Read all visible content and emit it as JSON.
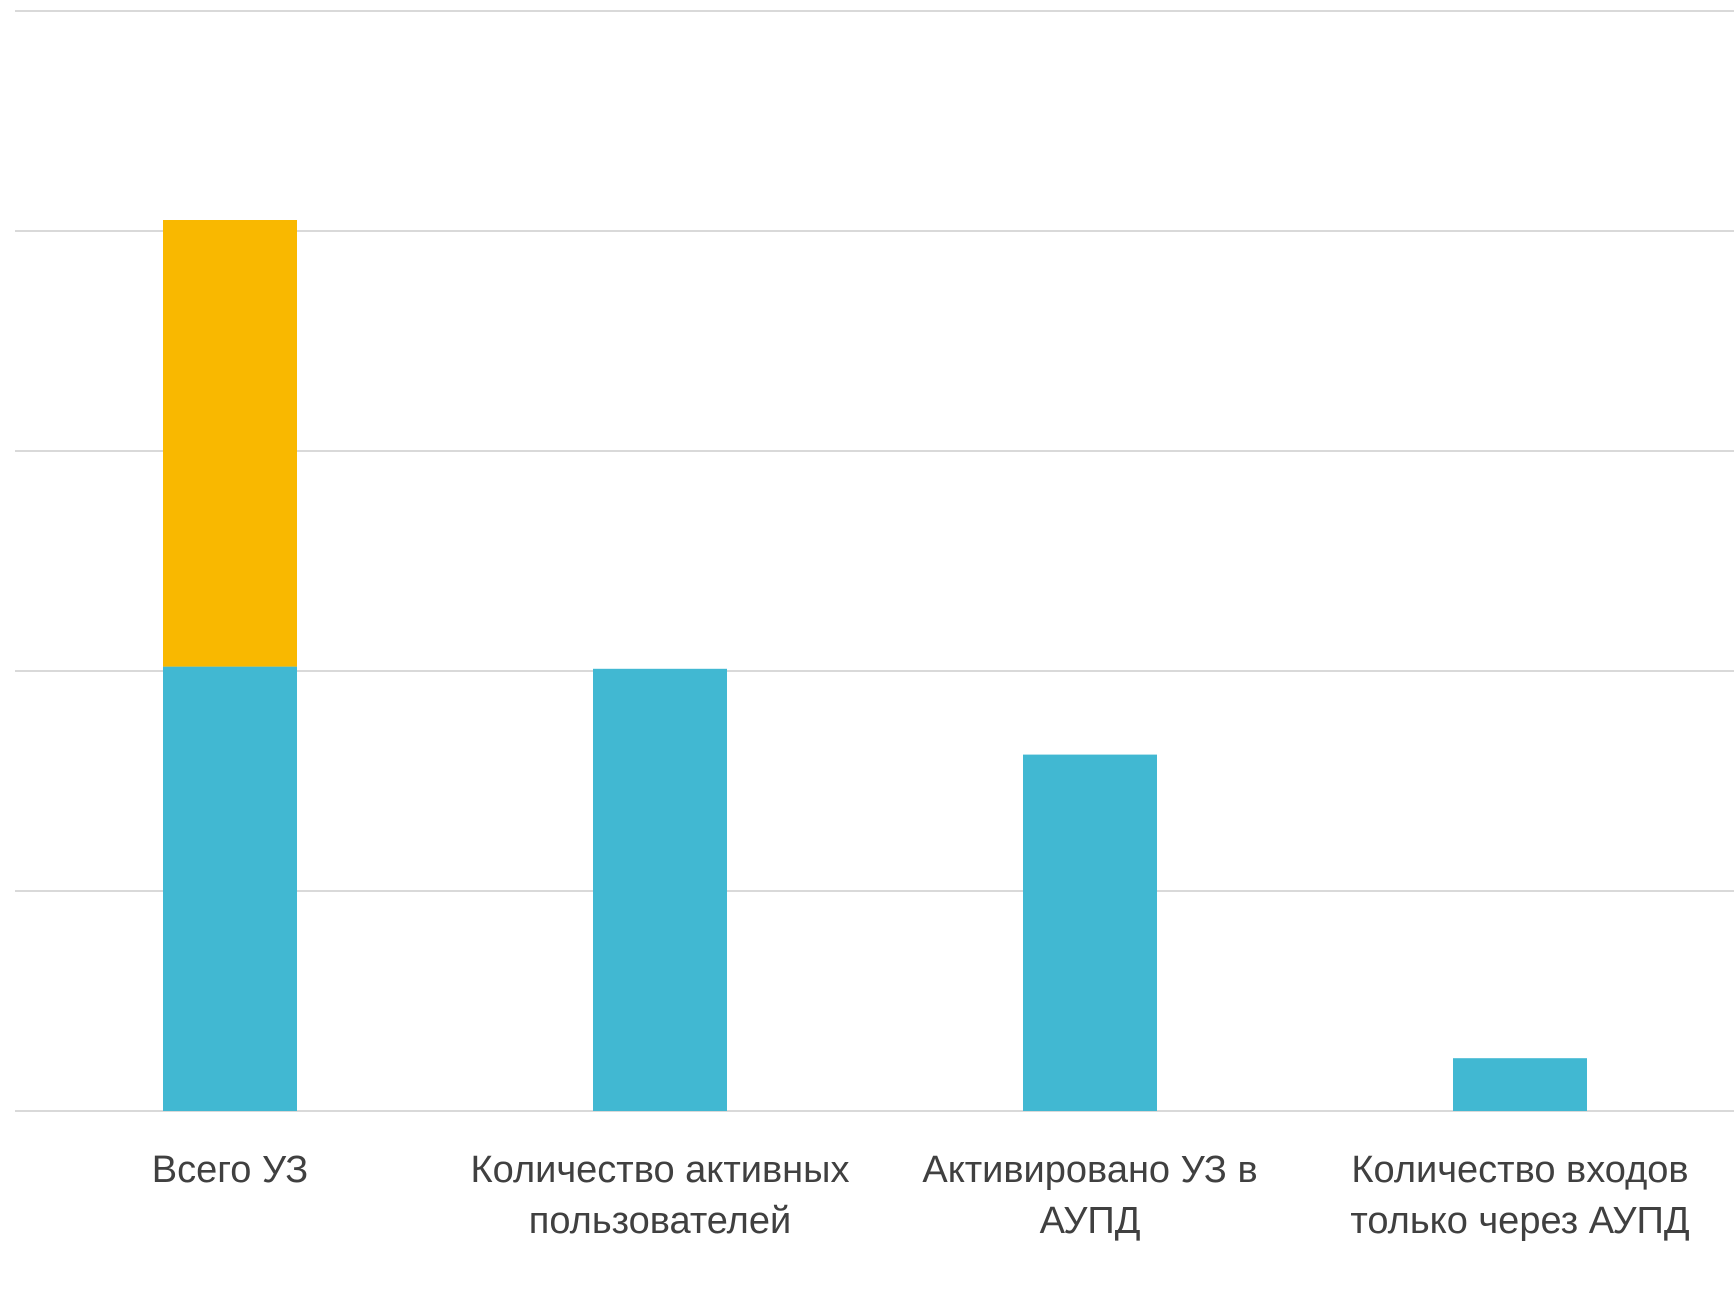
{
  "chart_data": {
    "type": "stacked-bar",
    "categories": [
      "Всего УЗ",
      "Количество активных пользователей",
      "Активировано УЗ в АУПД",
      "Количество входов только через АУПД"
    ],
    "series": [
      {
        "color": "#41b8d2",
        "values": [
          2.02,
          2.01,
          1.62,
          0.24
        ]
      },
      {
        "color": "#f9b800",
        "values": [
          2.03,
          null,
          null,
          null
        ]
      }
    ],
    "ylim": [
      0,
      5
    ],
    "yticks": [
      0,
      1,
      2,
      3,
      4,
      5
    ],
    "grid": true
  }
}
